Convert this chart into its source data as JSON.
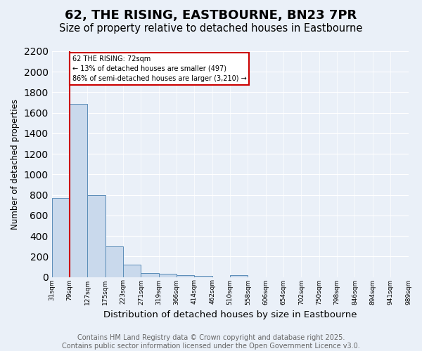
{
  "title": "62, THE RISING, EASTBOURNE, BN23 7PR",
  "subtitle": "Size of property relative to detached houses in Eastbourne",
  "xlabel": "Distribution of detached houses by size in Eastbourne",
  "ylabel": "Number of detached properties",
  "bar_values": [
    770,
    1690,
    800,
    300,
    120,
    40,
    30,
    20,
    10,
    0,
    20,
    0,
    0,
    0,
    0,
    0,
    0,
    0,
    0,
    0
  ],
  "bar_labels": [
    "31sqm",
    "79sqm",
    "127sqm",
    "175sqm",
    "223sqm",
    "271sqm",
    "319sqm",
    "366sqm",
    "414sqm",
    "462sqm",
    "510sqm",
    "558sqm",
    "606sqm",
    "654sqm",
    "702sqm",
    "750sqm",
    "798sqm",
    "846sqm",
    "894sqm",
    "941sqm",
    "989sqm"
  ],
  "bar_color": "#c9d9ec",
  "bar_edge_color": "#5b8db8",
  "marker_color": "#cc0000",
  "annotation_text": "62 THE RISING: 72sqm\n← 13% of detached houses are smaller (497)\n86% of semi-detached houses are larger (3,210) →",
  "annotation_box_color": "#ffffff",
  "annotation_border_color": "#cc0000",
  "ylim": [
    0,
    2200
  ],
  "yticks": [
    0,
    200,
    400,
    600,
    800,
    1000,
    1200,
    1400,
    1600,
    1800,
    2000,
    2200
  ],
  "bg_color": "#eaf0f8",
  "plot_bg_color": "#eaf0f8",
  "footer_text": "Contains HM Land Registry data © Crown copyright and database right 2025.\nContains public sector information licensed under the Open Government Licence v3.0.",
  "title_fontsize": 13,
  "subtitle_fontsize": 10.5,
  "xlabel_fontsize": 9.5,
  "ylabel_fontsize": 8.5,
  "footer_fontsize": 7.0
}
